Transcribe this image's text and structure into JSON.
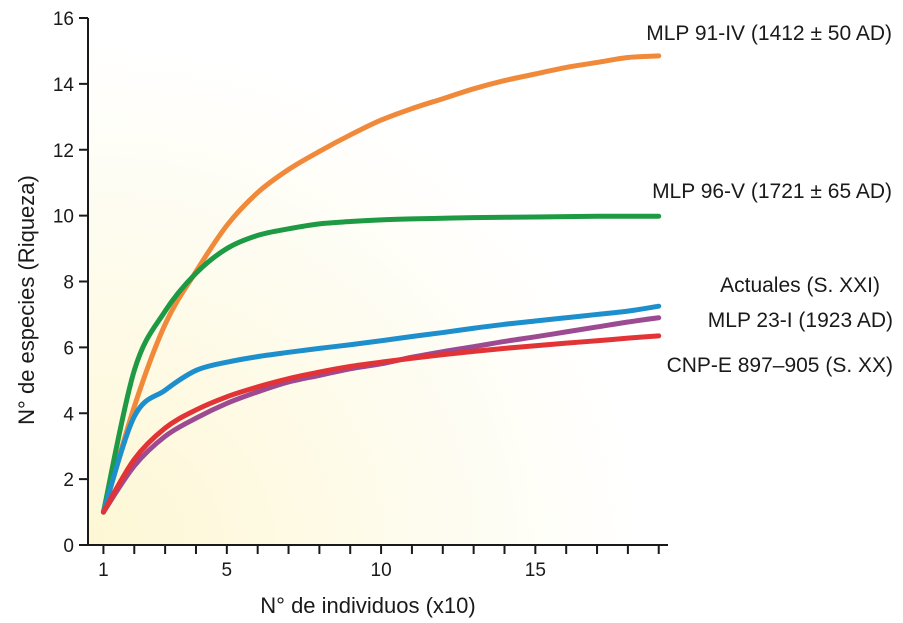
{
  "chart_data": {
    "type": "line",
    "title": "",
    "xlabel": "N° de individuos (x10)",
    "ylabel": "N° de especies (Riqueza)",
    "xlim": [
      0.5,
      19.3
    ],
    "ylim": [
      0,
      16
    ],
    "x_ticks": [
      1,
      5,
      10,
      15
    ],
    "x_minor_ticks": [
      1,
      2,
      3,
      4,
      5,
      6,
      7,
      8,
      9,
      10,
      11,
      12,
      13,
      14,
      15,
      16,
      17,
      18,
      19
    ],
    "y_ticks": [
      0,
      2,
      4,
      6,
      8,
      10,
      12,
      14,
      16
    ],
    "grid": false,
    "legend": "inline labels at line ends",
    "background_gradient": [
      "#fdf7d4",
      "#ffffff"
    ],
    "series": [
      {
        "name": "MLP 91-IV (1412 ± 50 AD)",
        "color": "#f08a3a",
        "x": [
          1,
          2,
          3,
          4,
          5,
          6,
          7,
          8,
          9,
          10,
          11,
          12,
          13,
          14,
          15,
          16,
          17,
          18,
          19
        ],
        "y": [
          1.0,
          4.2,
          6.7,
          8.3,
          9.7,
          10.7,
          11.4,
          11.95,
          12.45,
          12.9,
          13.25,
          13.55,
          13.85,
          14.1,
          14.3,
          14.5,
          14.65,
          14.8,
          14.85
        ]
      },
      {
        "name": "MLP 96-V (1721 ± 65 AD)",
        "color": "#1e9a44",
        "x": [
          1,
          2,
          3,
          4,
          5,
          6,
          7,
          8,
          9,
          10,
          11,
          12,
          13,
          14,
          15,
          16,
          17,
          18,
          19
        ],
        "y": [
          1.0,
          5.3,
          7.1,
          8.25,
          9.0,
          9.4,
          9.6,
          9.75,
          9.82,
          9.87,
          9.9,
          9.92,
          9.94,
          9.95,
          9.96,
          9.97,
          9.98,
          9.98,
          9.98
        ]
      },
      {
        "name": "Actuales (S. XXI)",
        "color": "#1d8fcc",
        "x": [
          1,
          2,
          3,
          4,
          5,
          6,
          7,
          8,
          9,
          10,
          11,
          12,
          13,
          14,
          15,
          16,
          17,
          18,
          19
        ],
        "y": [
          1.0,
          3.9,
          4.7,
          5.3,
          5.55,
          5.72,
          5.85,
          5.97,
          6.08,
          6.2,
          6.33,
          6.45,
          6.58,
          6.7,
          6.8,
          6.9,
          7.0,
          7.1,
          7.25
        ]
      },
      {
        "name": "MLP 23-I (1923 AD)",
        "color": "#9c4a92",
        "x": [
          1,
          2,
          3,
          4,
          5,
          6,
          7,
          8,
          9,
          10,
          11,
          12,
          13,
          14,
          15,
          16,
          17,
          18,
          19
        ],
        "y": [
          1.0,
          2.4,
          3.3,
          3.85,
          4.3,
          4.65,
          4.95,
          5.15,
          5.35,
          5.5,
          5.7,
          5.87,
          6.02,
          6.18,
          6.32,
          6.47,
          6.62,
          6.77,
          6.9
        ]
      },
      {
        "name": "CNP-E 897–905 (S. XX)",
        "color": "#e23336",
        "x": [
          1,
          2,
          3,
          4,
          5,
          6,
          7,
          8,
          9,
          10,
          11,
          12,
          13,
          14,
          15,
          16,
          17,
          18,
          19
        ],
        "y": [
          1.0,
          2.6,
          3.55,
          4.1,
          4.5,
          4.8,
          5.05,
          5.25,
          5.42,
          5.55,
          5.67,
          5.78,
          5.88,
          5.97,
          6.05,
          6.13,
          6.2,
          6.28,
          6.35
        ]
      }
    ]
  }
}
